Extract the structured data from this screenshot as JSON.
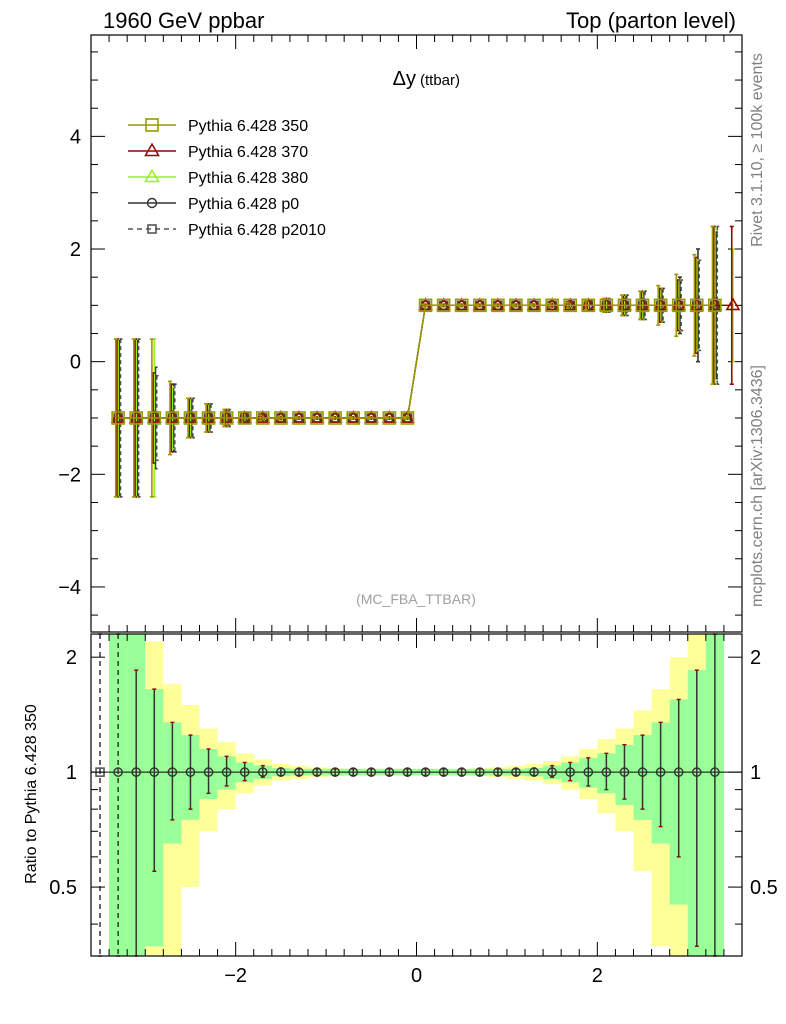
{
  "header": {
    "left": "1960 GeV ppbar",
    "right": "Top (parton level)"
  },
  "side_labels": {
    "rivet": "Rivet 3.1.10, ≥ 100k events",
    "source": "mcplots.cern.ch [arXiv:1306.3436]"
  },
  "chart_data": [
    {
      "type": "line",
      "title_main": "Δy",
      "title_sub": "(ttbar)",
      "watermark": "(MC_FBA_TTBAR)",
      "ylim": [
        -4.8,
        5.8
      ],
      "xlim": [
        -3.6,
        3.6
      ],
      "yticks": [
        -4,
        -2,
        0,
        2,
        4
      ],
      "y_tick_labels": [
        "−4",
        "−2",
        "0",
        "2",
        "4"
      ],
      "legend": {
        "placement": "top-left"
      },
      "x": [
        -3.3,
        -3.1,
        -2.9,
        -2.7,
        -2.5,
        -2.3,
        -2.1,
        -1.9,
        -1.7,
        -1.5,
        -1.3,
        -1.1,
        -0.9,
        -0.7,
        -0.5,
        -0.3,
        -0.1,
        0.1,
        0.3,
        0.5,
        0.7,
        0.9,
        1.1,
        1.3,
        1.5,
        1.7,
        1.9,
        2.1,
        2.3,
        2.5,
        2.7,
        2.9,
        3.1,
        3.3,
        3.5
      ],
      "series": [
        {
          "name": "Pythia 6.428 350",
          "color": "#999900",
          "marker": "square",
          "dashed": false,
          "values": [
            -1,
            -1,
            -1,
            -1,
            -1,
            -1,
            -1,
            -1,
            -1,
            -1,
            -1,
            -1,
            -1,
            -1,
            -1,
            -1,
            -1,
            1,
            1,
            1,
            1,
            1,
            1,
            1,
            1,
            1,
            1,
            1,
            1,
            1,
            1,
            1,
            1,
            1,
            null
          ],
          "errors": [
            1.4,
            1.4,
            1.4,
            0.65,
            0.35,
            0.25,
            0.15,
            0.1,
            0.05,
            0.03,
            0.02,
            0.02,
            0.02,
            0.02,
            0.02,
            0.02,
            0.02,
            0.02,
            0.02,
            0.02,
            0.02,
            0.02,
            0.02,
            0.02,
            0.03,
            0.05,
            0.08,
            0.12,
            0.18,
            0.25,
            0.35,
            0.55,
            0.9,
            1.4,
            null
          ]
        },
        {
          "name": "Pythia 6.428 370",
          "color": "#990000",
          "marker": "triangle",
          "dashed": false,
          "values": [
            -1,
            -1,
            -1,
            -1,
            -1,
            -1,
            -1,
            -1,
            -1,
            -1,
            -1,
            -1,
            -1,
            -1,
            -1,
            -1,
            -1,
            1,
            1,
            1,
            1,
            1,
            1,
            1,
            1,
            1,
            1,
            1,
            1,
            1,
            1,
            1,
            1,
            1,
            1
          ],
          "errors": [
            1.4,
            1.4,
            0.8,
            0.6,
            0.35,
            0.25,
            0.15,
            0.1,
            0.05,
            0.03,
            0.02,
            0.02,
            0.02,
            0.02,
            0.02,
            0.02,
            0.02,
            0.02,
            0.02,
            0.02,
            0.02,
            0.02,
            0.02,
            0.02,
            0.03,
            0.05,
            0.08,
            0.12,
            0.18,
            0.25,
            0.3,
            0.45,
            0.85,
            1.4,
            1.4
          ]
        },
        {
          "name": "Pythia 6.428 380",
          "color": "#99ee22",
          "marker": "triangle",
          "dashed": false,
          "values": [
            -1,
            -1,
            -1,
            -1,
            -1,
            -1,
            -1,
            -1,
            -1,
            -1,
            -1,
            -1,
            -1,
            -1,
            -1,
            -1,
            -1,
            1,
            1,
            1,
            1,
            1,
            1,
            1,
            1,
            1,
            1,
            1,
            1,
            1,
            1,
            1,
            1,
            1,
            1
          ],
          "errors": [
            1.4,
            1.4,
            1.4,
            0.55,
            0.35,
            0.25,
            0.15,
            0.1,
            0.05,
            0.03,
            0.02,
            0.02,
            0.02,
            0.02,
            0.02,
            0.02,
            0.02,
            0.02,
            0.02,
            0.02,
            0.02,
            0.02,
            0.02,
            0.02,
            0.03,
            0.05,
            0.08,
            0.12,
            0.18,
            0.25,
            0.3,
            0.45,
            0.8,
            1.4,
            1.0
          ]
        },
        {
          "name": "Pythia 6.428 p0",
          "color": "#333333",
          "marker": "circle",
          "dashed": false,
          "values": [
            -1,
            -1,
            -1,
            -1,
            -1,
            -1,
            -1,
            -1,
            -1,
            -1,
            -1,
            -1,
            -1,
            -1,
            -1,
            -1,
            -1,
            1,
            1,
            1,
            1,
            1,
            1,
            1,
            1,
            1,
            1,
            1,
            1,
            1,
            1,
            1,
            1,
            1,
            null
          ],
          "errors": [
            1.4,
            1.4,
            0.9,
            0.6,
            0.35,
            0.25,
            0.15,
            0.1,
            0.05,
            0.03,
            0.02,
            0.02,
            0.02,
            0.02,
            0.02,
            0.02,
            0.02,
            0.02,
            0.02,
            0.02,
            0.02,
            0.02,
            0.02,
            0.02,
            0.03,
            0.05,
            0.08,
            0.12,
            0.18,
            0.25,
            0.3,
            0.5,
            1.0,
            1.3,
            null
          ]
        },
        {
          "name": "Pythia 6.428 p2010",
          "color": "#555555",
          "marker": "square",
          "dashed": true,
          "values": [
            -1,
            -1,
            -1,
            -1,
            -1,
            -1,
            -1,
            -1,
            -1,
            -1,
            -1,
            -1,
            -1,
            -1,
            -1,
            -1,
            -1,
            1,
            1,
            1,
            1,
            1,
            1,
            1,
            1,
            1,
            1,
            1,
            1,
            1,
            1,
            1,
            1,
            1,
            null
          ],
          "errors": [
            1.4,
            1.4,
            0.75,
            0.6,
            0.35,
            0.25,
            0.15,
            0.1,
            0.05,
            0.03,
            0.02,
            0.02,
            0.02,
            0.02,
            0.02,
            0.02,
            0.02,
            0.02,
            0.02,
            0.02,
            0.02,
            0.02,
            0.02,
            0.02,
            0.03,
            0.05,
            0.08,
            0.12,
            0.18,
            0.25,
            0.3,
            0.45,
            0.8,
            1.4,
            null
          ]
        }
      ]
    },
    {
      "type": "line",
      "ylabel": "Ratio to Pythia 6.428 350",
      "ylim": [
        0.33,
        2.3
      ],
      "xlim": [
        -3.6,
        3.6
      ],
      "xticks": [
        -2,
        0,
        2
      ],
      "x_tick_labels": [
        "−2",
        "0",
        "2"
      ],
      "yticks": [
        0.5,
        1,
        2
      ],
      "y_tick_labels": [
        "0.5",
        "1",
        "2"
      ],
      "reference_line": 1,
      "band_x_edges": [
        -3.6,
        -3.4,
        -3.2,
        -3.0,
        -2.8,
        -2.6,
        -2.4,
        -2.2,
        -2.0,
        -1.8,
        -1.6,
        -1.4,
        -1.2,
        -1.0,
        -0.8,
        -0.6,
        -0.4,
        -0.2,
        0.0,
        0.2,
        0.4,
        0.6,
        0.8,
        1.0,
        1.2,
        1.4,
        1.6,
        1.8,
        2.0,
        2.2,
        2.4,
        2.6,
        2.8,
        3.0,
        3.2,
        3.4
      ],
      "band_inner_halfwidth": [
        1.4,
        1.4,
        1.4,
        0.65,
        0.35,
        0.25,
        0.15,
        0.1,
        0.06,
        0.04,
        0.025,
        0.02,
        0.02,
        0.02,
        0.02,
        0.02,
        0.02,
        0.02,
        0.02,
        0.02,
        0.02,
        0.02,
        0.02,
        0.02,
        0.025,
        0.04,
        0.06,
        0.09,
        0.12,
        0.18,
        0.25,
        0.35,
        0.55,
        0.85,
        1.4
      ],
      "band_outer_halfwidth": [
        1.4,
        1.4,
        1.4,
        1.2,
        0.7,
        0.5,
        0.3,
        0.2,
        0.12,
        0.08,
        0.05,
        0.04,
        0.03,
        0.025,
        0.02,
        0.02,
        0.02,
        0.02,
        0.02,
        0.02,
        0.02,
        0.025,
        0.03,
        0.04,
        0.05,
        0.07,
        0.1,
        0.15,
        0.22,
        0.3,
        0.45,
        0.65,
        1.0,
        1.4,
        1.4
      ],
      "band_inner_color": "#99ff99",
      "band_outer_color": "#ffff99",
      "x": [
        -3.5,
        -3.3,
        -3.1,
        -2.9,
        -2.7,
        -2.5,
        -2.3,
        -2.1,
        -1.9,
        -1.7,
        -1.5,
        -1.3,
        -1.1,
        -0.9,
        -0.7,
        -0.5,
        -0.3,
        -0.1,
        0.1,
        0.3,
        0.5,
        0.7,
        0.9,
        1.1,
        1.3,
        1.5,
        1.7,
        1.9,
        2.1,
        2.3,
        2.5,
        2.7,
        2.9,
        3.1,
        3.3
      ],
      "values": [
        1,
        1,
        1,
        1,
        1,
        1,
        1,
        1,
        1,
        1,
        1,
        1,
        1,
        1,
        1,
        1,
        1,
        1,
        1,
        1,
        1,
        1,
        1,
        1,
        1,
        1,
        1,
        1,
        1,
        1,
        1,
        1,
        1,
        1,
        1
      ],
      "errors_up": [
        1.4,
        1.4,
        0.85,
        0.65,
        0.35,
        0.25,
        0.15,
        0.1,
        0.06,
        0.04,
        0.025,
        0.02,
        0.02,
        0.02,
        0.02,
        0.02,
        0.02,
        0.02,
        0.02,
        0.02,
        0.02,
        0.02,
        0.02,
        0.02,
        0.025,
        0.04,
        0.06,
        0.09,
        0.12,
        0.18,
        0.25,
        0.35,
        0.55,
        0.85,
        1.4
      ],
      "errors_down": [
        0.7,
        0.7,
        0.7,
        0.45,
        0.25,
        0.2,
        0.12,
        0.08,
        0.05,
        0.03,
        0.02,
        0.02,
        0.02,
        0.02,
        0.02,
        0.02,
        0.02,
        0.02,
        0.02,
        0.02,
        0.02,
        0.02,
        0.02,
        0.02,
        0.02,
        0.03,
        0.05,
        0.08,
        0.1,
        0.15,
        0.2,
        0.28,
        0.4,
        0.65,
        0.7
      ]
    }
  ]
}
